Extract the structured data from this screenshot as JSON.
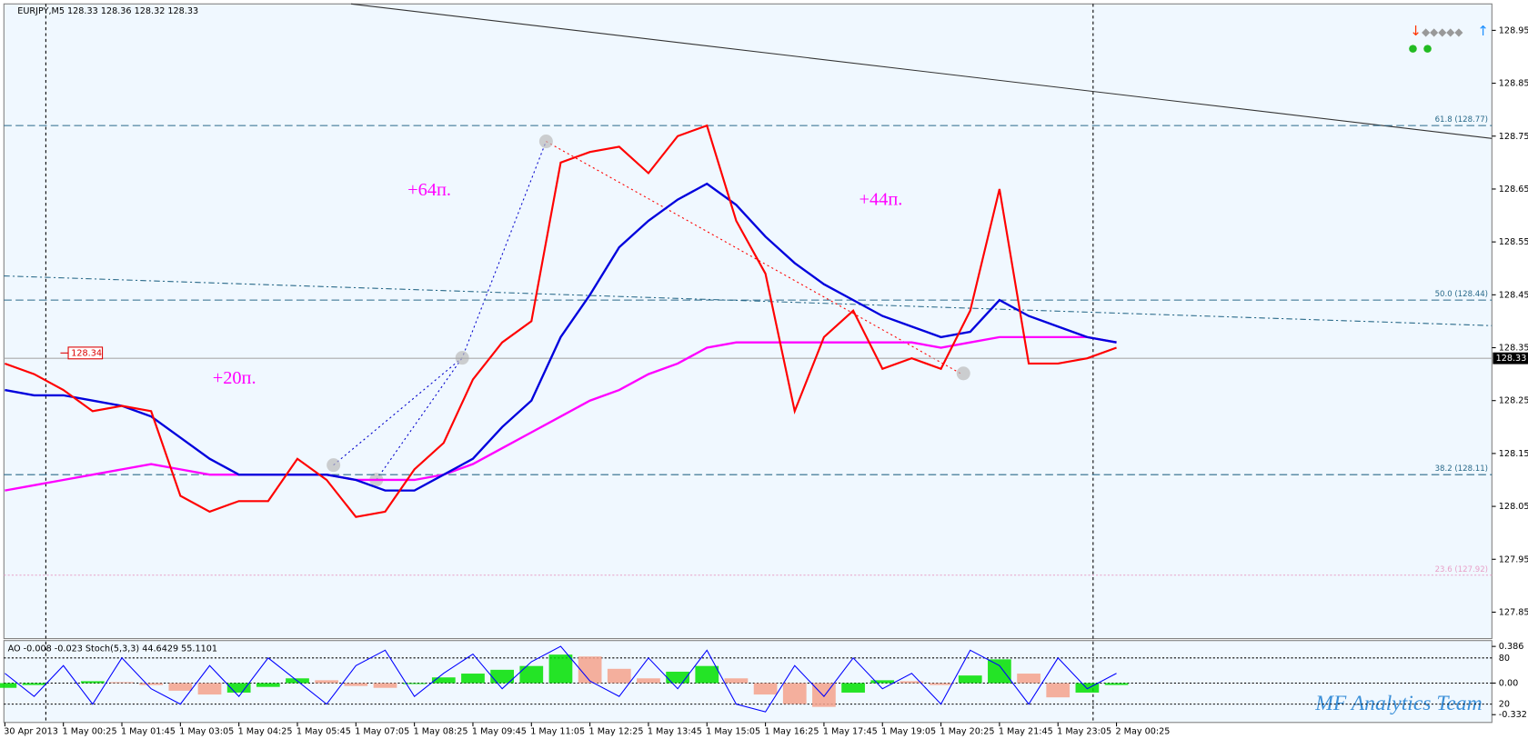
{
  "header": "EURJPY,M5  128.33 128.36 128.32 128.33",
  "watermark": "MF Analytics Team",
  "chart_data": [
    {
      "type": "line",
      "categories": [
        "30 Apr 2013",
        null,
        "1 May 00:25",
        null,
        "1 May 01:45",
        null,
        "1 May 03:05",
        null,
        "1 May 04:25",
        null,
        "1 May 05:45",
        null,
        "1 May 07:05",
        null,
        "1 May 08:25",
        null,
        "1 May 09:45",
        null,
        "1 May 11:05",
        null,
        "1 May 12:25",
        null,
        "1 May 13:45",
        null,
        "1 May 15:05",
        null,
        "1 May 16:25",
        null,
        "1 May 17:45",
        null,
        "1 May 19:05",
        null,
        "1 May 20:25",
        null,
        "1 May 21:45",
        null,
        "1 May 23:05",
        null,
        "2 May 00:25"
      ],
      "series": [
        {
          "name": "MA magenta",
          "color": "#ff00ff",
          "width": 2.2,
          "values": [
            128.08,
            128.09,
            128.1,
            128.11,
            128.12,
            128.13,
            128.12,
            128.11,
            128.11,
            128.11,
            128.11,
            128.11,
            128.1,
            128.1,
            128.1,
            128.11,
            128.13,
            128.16,
            128.19,
            128.22,
            128.25,
            128.27,
            128.3,
            128.32,
            128.35,
            128.36,
            128.36,
            128.36,
            128.36,
            128.36,
            128.36,
            128.36,
            128.35,
            128.36,
            128.37,
            128.37,
            128.37,
            128.37,
            128.36
          ]
        },
        {
          "name": "MA blue",
          "color": "#0000dd",
          "width": 2.2,
          "values": [
            128.27,
            128.26,
            128.26,
            128.25,
            128.24,
            128.22,
            128.18,
            128.14,
            128.11,
            128.11,
            128.11,
            128.11,
            128.1,
            128.08,
            128.08,
            128.11,
            128.14,
            128.2,
            128.25,
            128.37,
            128.45,
            128.54,
            128.59,
            128.63,
            128.66,
            128.62,
            128.56,
            128.51,
            128.47,
            128.44,
            128.41,
            128.39,
            128.37,
            128.38,
            128.44,
            128.41,
            128.39,
            128.37,
            128.36
          ]
        },
        {
          "name": "MA red",
          "color": "#ff0000",
          "width": 2,
          "values": [
            128.32,
            128.3,
            128.27,
            128.23,
            128.24,
            128.23,
            128.07,
            128.04,
            128.06,
            128.06,
            128.14,
            128.1,
            128.03,
            128.04,
            128.12,
            128.17,
            128.29,
            128.36,
            128.4,
            128.7,
            128.72,
            128.73,
            128.68,
            128.75,
            128.77,
            128.59,
            128.49,
            128.23,
            128.37,
            128.42,
            128.31,
            128.33,
            128.31,
            128.42,
            128.65,
            128.32,
            128.32,
            128.33,
            128.35
          ]
        }
      ],
      "ylim": [
        127.8,
        129.0
      ],
      "yticks": [
        127.85,
        127.95,
        128.05,
        128.15,
        128.25,
        128.35,
        128.45,
        128.55,
        128.65,
        128.75,
        128.85,
        128.95
      ],
      "fib_levels": [
        {
          "value": 128.77,
          "label": "61.8 (128.77)"
        },
        {
          "value": 128.44,
          "label": "50.0 (128.44)"
        },
        {
          "value": 128.11,
          "label": "38.2 (128.11)"
        },
        {
          "value": 127.92,
          "label": "23.6 (127.92)"
        }
      ],
      "current_price": 128.33,
      "price_tag": 128.34,
      "annotations": [
        "+20п.",
        "+64п.",
        "+44п."
      ]
    },
    {
      "type": "oscillator",
      "title": "AO -0.008 -0.023  Stoch(5,3,3) 44.6429 55.1101",
      "ao": {
        "up_color": "#00e000",
        "down_color": "#f4a28c",
        "ylim": [
          -0.332,
          0.386
        ],
        "yticks": [
          -0.332,
          {
            "value": 0,
            "label": "0.00"
          },
          0.386
        ],
        "values": [
          -0.05,
          -0.02,
          0.0,
          0.02,
          0.01,
          -0.02,
          -0.08,
          -0.12,
          -0.1,
          -0.04,
          0.05,
          0.03,
          -0.03,
          -0.05,
          -0.01,
          0.06,
          0.1,
          0.14,
          0.18,
          0.3,
          0.28,
          0.15,
          0.05,
          0.12,
          0.18,
          0.05,
          -0.12,
          -0.22,
          -0.25,
          -0.1,
          0.03,
          0.02,
          -0.02,
          0.08,
          0.25,
          0.1,
          -0.15,
          -0.1,
          -0.02
        ]
      },
      "stoch": {
        "color": "#0000ff",
        "ylim": [
          0,
          100
        ],
        "yticks": [
          20,
          80
        ],
        "values": [
          60,
          30,
          70,
          20,
          80,
          40,
          20,
          70,
          30,
          80,
          50,
          20,
          70,
          90,
          30,
          60,
          85,
          40,
          75,
          95,
          50,
          30,
          80,
          40,
          90,
          20,
          10,
          70,
          30,
          80,
          40,
          60,
          20,
          90,
          70,
          20,
          80,
          40,
          60
        ]
      }
    }
  ]
}
